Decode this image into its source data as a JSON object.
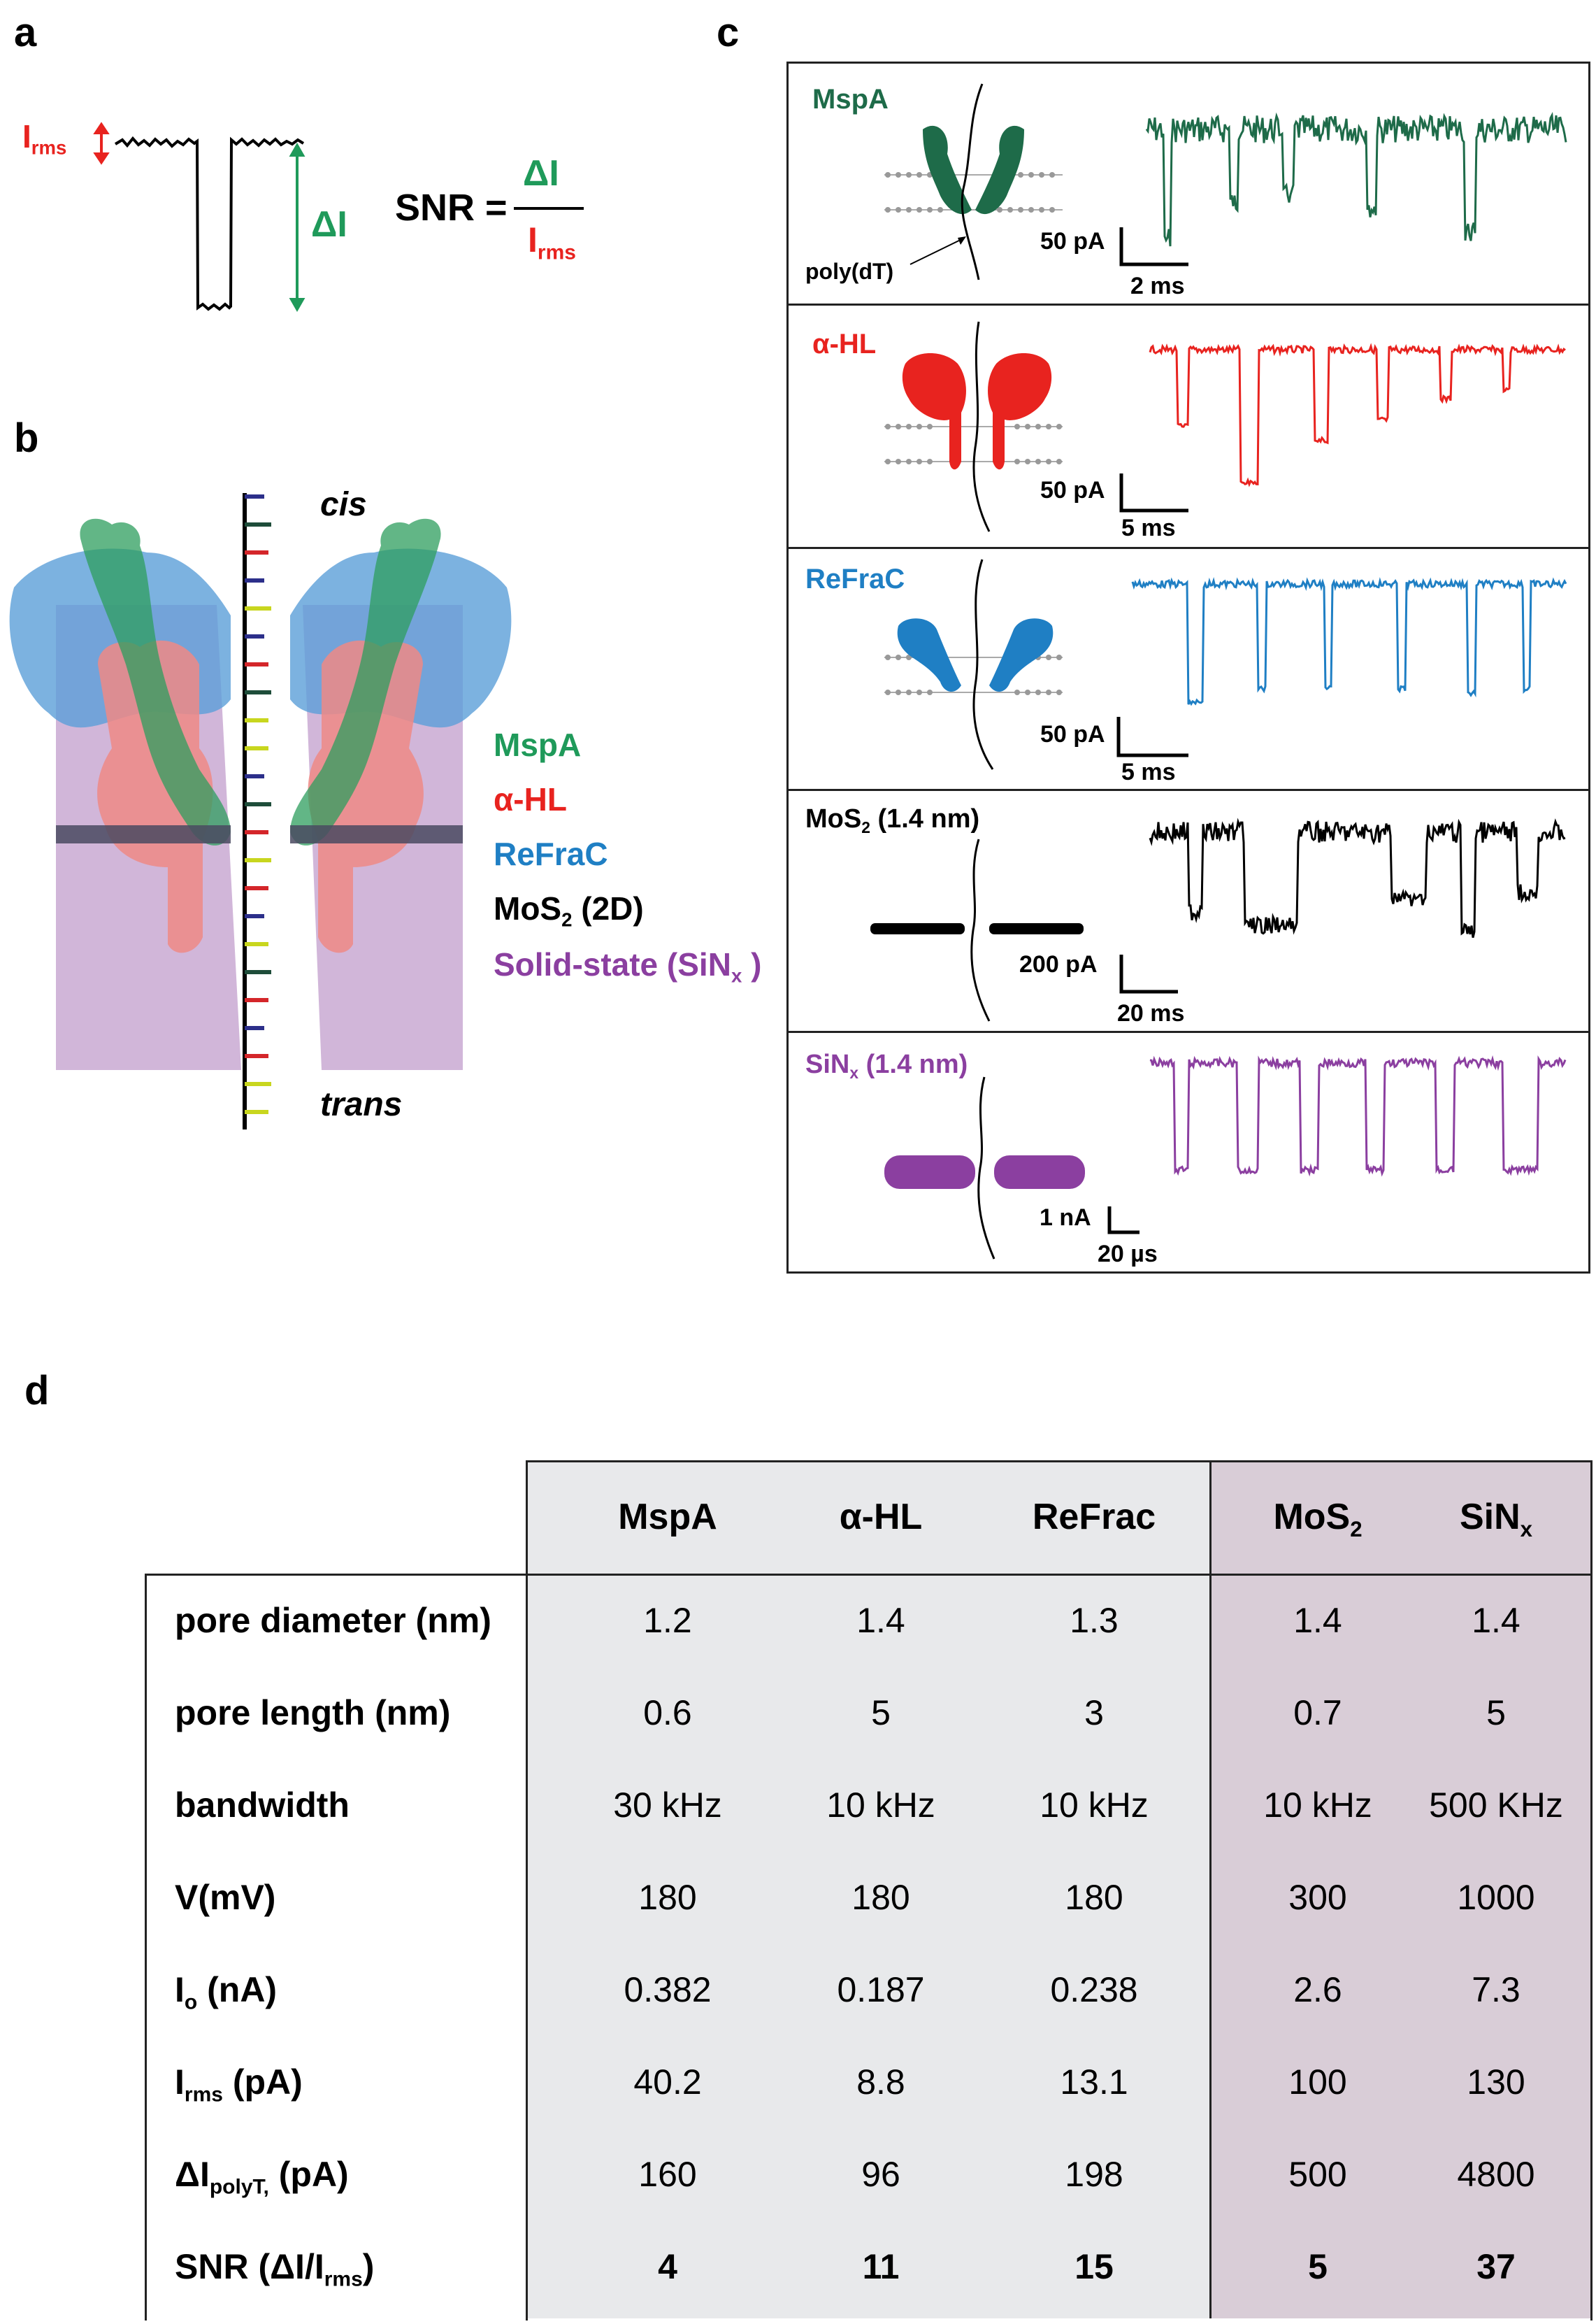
{
  "panels": {
    "a": "a",
    "b": "b",
    "c": "c",
    "d": "d"
  },
  "panel_a": {
    "irms": "I",
    "irms_sub": "rms",
    "delta_i": "ΔI",
    "snr_label": "SNR =",
    "snr_num": "ΔI",
    "snr_den": "I",
    "snr_den_sub": "rms"
  },
  "panel_b": {
    "cis": "cis",
    "trans": "trans",
    "legend": {
      "mspa": "MspA",
      "ahl": "α-HL",
      "refrac": "ReFraC",
      "mos2": "MoS",
      "mos2_sub": "2",
      "mos2_tail": " (2D)",
      "solid": "Solid-state (SiN",
      "solid_sub": "x",
      "solid_tail": " )"
    },
    "colors": {
      "mspa": "#1f9a5a",
      "ahl": "#e8231f",
      "refrac": "#1f7fc4",
      "mos2": "#000000",
      "solid": "#8b3fa0"
    }
  },
  "panel_c": {
    "polylabel": "poly(dT)",
    "rows": [
      {
        "name": "MspA",
        "name_sub": "",
        "name_tail": "",
        "color": "#1e6b49",
        "scale_y": "50 pA",
        "scale_x": "2 ms"
      },
      {
        "name": "α-HL",
        "name_sub": "",
        "name_tail": "",
        "color": "#e8231f",
        "scale_y": "50 pA",
        "scale_x": "5 ms"
      },
      {
        "name": "ReFraC",
        "name_sub": "",
        "name_tail": "",
        "color": "#1f7fc4",
        "scale_y": "50 pA",
        "scale_x": "5 ms"
      },
      {
        "name": "MoS",
        "name_sub": "2",
        "name_tail": " (1.4 nm)",
        "color": "#000000",
        "scale_y": "200 pA",
        "scale_x": "20 ms"
      },
      {
        "name": "SiN",
        "name_sub": "x",
        "name_tail": " (1.4 nm)",
        "color": "#8b3fa0",
        "scale_y": "1 nA",
        "scale_x": "20 µs"
      }
    ]
  },
  "panel_d": {
    "columns": [
      {
        "main": "MspA",
        "sub": ""
      },
      {
        "main": "α-HL",
        "sub": ""
      },
      {
        "main": "ReFrac",
        "sub": ""
      },
      {
        "main": "MoS",
        "sub": "2"
      },
      {
        "main": "SiN",
        "sub": "x"
      }
    ],
    "rows": [
      {
        "label": "pore diameter (nm)",
        "label_sub": "",
        "label_tail": "",
        "values": [
          "1.2",
          "1.4",
          "1.3",
          "1.4",
          "1.4"
        ],
        "bold": false
      },
      {
        "label": "pore length (nm)",
        "label_sub": "",
        "label_tail": "",
        "values": [
          "0.6",
          "5",
          "3",
          "0.7",
          "5"
        ],
        "bold": false
      },
      {
        "label": "bandwidth",
        "label_sub": "",
        "label_tail": "",
        "values": [
          "30 kHz",
          "10 kHz",
          "10 kHz",
          "10 kHz",
          "500 KHz"
        ],
        "bold": false
      },
      {
        "label": "V(mV)",
        "label_sub": "",
        "label_tail": "",
        "values": [
          "180",
          "180",
          "180",
          "300",
          "1000"
        ],
        "bold": false
      },
      {
        "label": "I",
        "label_sub": "o",
        "label_tail": " (nA)",
        "values": [
          "0.382",
          "0.187",
          "0.238",
          "2.6",
          "7.3"
        ],
        "bold": false
      },
      {
        "label": "I",
        "label_sub": "rms",
        "label_tail": " (pA)",
        "values": [
          "40.2",
          "8.8",
          "13.1",
          "100",
          "130"
        ],
        "bold": false
      },
      {
        "label": "ΔI",
        "label_sub": "polyT,",
        "label_tail": " (pA)",
        "values": [
          "160",
          "96",
          "198",
          "500",
          "4800"
        ],
        "bold": false
      },
      {
        "label": "SNR (ΔI/I",
        "label_sub": "rms",
        "label_tail": ")",
        "values": [
          "4",
          "11",
          "15",
          "5",
          "37"
        ],
        "bold": true
      }
    ],
    "colors": {
      "biological_bg": "#e8e9eb",
      "solid_bg": "#d9cdd7"
    }
  }
}
